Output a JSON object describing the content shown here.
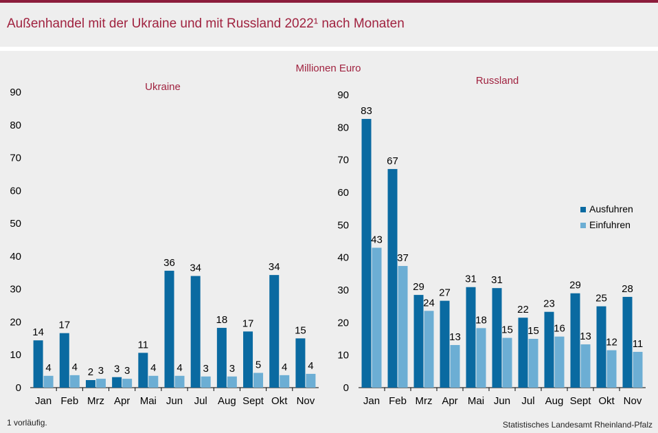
{
  "header": {
    "title": "Außenhandel mit der Ukraine und mit Russland 2022¹ nach Monaten"
  },
  "unit_label": "Millionen Euro",
  "footnote": "1 vorläufig.",
  "source": "Statistisches Landesamt Rheinland-Pfalz",
  "colors": {
    "ausfuhren": "#0a6aa1",
    "einfuhren": "#6caed4",
    "accent": "#a0223f"
  },
  "chart_data": [
    {
      "type": "bar",
      "title": "Ukraine",
      "categories": [
        "Jan",
        "Feb",
        "Mrz",
        "Apr",
        "Mai",
        "Jun",
        "Jul",
        "Aug",
        "Sept",
        "Okt",
        "Nov"
      ],
      "ylim": [
        0,
        90
      ],
      "yticks": [
        0,
        10,
        20,
        30,
        40,
        50,
        60,
        70,
        80,
        90
      ],
      "series": [
        {
          "name": "Ausfuhren",
          "values": [
            14,
            17,
            2,
            3,
            11,
            36,
            34,
            18,
            17,
            34,
            15
          ],
          "heights": [
            14.4,
            16.6,
            2.3,
            3.2,
            10.6,
            35.6,
            34.0,
            18.2,
            17.1,
            34.3,
            15.0
          ]
        },
        {
          "name": "Einfuhren",
          "values": [
            4,
            4,
            3,
            3,
            4,
            4,
            3,
            3,
            5,
            4,
            4
          ],
          "heights": [
            3.6,
            3.8,
            2.7,
            2.7,
            3.6,
            3.6,
            3.4,
            3.4,
            4.5,
            3.8,
            4.2
          ]
        }
      ],
      "legend": false
    },
    {
      "type": "bar",
      "title": "Russland",
      "categories": [
        "Jan",
        "Feb",
        "Mrz",
        "Apr",
        "Mai",
        "Jun",
        "Jul",
        "Aug",
        "Sept",
        "Okt",
        "Nov"
      ],
      "ylim": [
        0,
        90
      ],
      "yticks": [
        0,
        10,
        20,
        30,
        40,
        50,
        60,
        70,
        80,
        90
      ],
      "series": [
        {
          "name": "Ausfuhren",
          "values": [
            83,
            67,
            29,
            27,
            31,
            31,
            22,
            23,
            29,
            25,
            28
          ],
          "heights": [
            82.6,
            67.2,
            28.5,
            26.7,
            30.9,
            30.6,
            21.5,
            23.3,
            29.0,
            25.0,
            27.9
          ]
        },
        {
          "name": "Einfuhren",
          "values": [
            43,
            37,
            24,
            13,
            18,
            15,
            15,
            16,
            13,
            12,
            11
          ],
          "heights": [
            43.0,
            37.4,
            23.6,
            13.1,
            18.3,
            15.3,
            15.0,
            15.7,
            13.3,
            11.5,
            11.0
          ]
        }
      ],
      "legend": true,
      "legend_position": "right"
    }
  ]
}
